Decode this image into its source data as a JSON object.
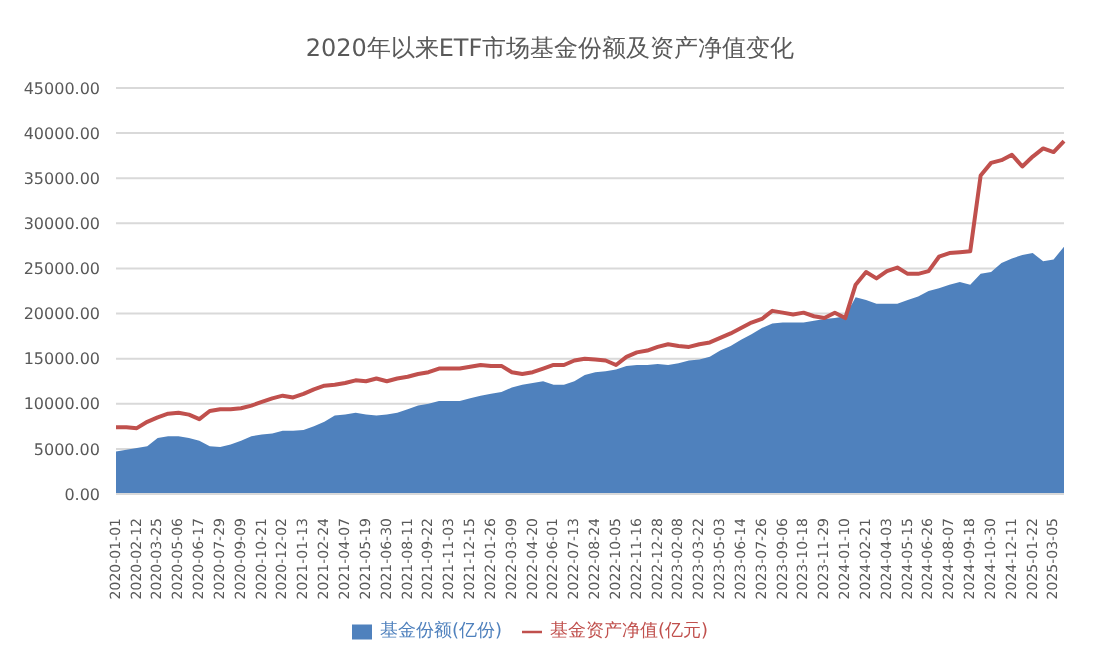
{
  "chart_data": {
    "type": "area",
    "title": "2020年以来ETF市场基金份额及资产净值变化",
    "categories": [
      "2020-01-01",
      null,
      "2020-02-12",
      null,
      "2020-03-25",
      null,
      "2020-05-06",
      null,
      "2020-06-17",
      null,
      "2020-07-29",
      null,
      "2020-09-09",
      null,
      "2020-10-21",
      null,
      "2020-12-02",
      null,
      "2021-01-13",
      null,
      "2021-02-24",
      null,
      "2021-04-07",
      null,
      "2021-05-19",
      null,
      "2021-06-30",
      null,
      "2021-08-11",
      null,
      "2021-09-22",
      null,
      "2021-11-03",
      null,
      "2021-12-15",
      null,
      "2022-01-26",
      null,
      "2022-03-09",
      null,
      "2022-04-20",
      null,
      "2022-06-01",
      null,
      "2022-07-13",
      null,
      "2022-08-24",
      null,
      "2022-10-05",
      null,
      "2022-11-16",
      null,
      "2022-12-28",
      null,
      "2023-02-08",
      null,
      "2023-03-22",
      null,
      "2023-05-03",
      null,
      "2023-06-14",
      null,
      "2023-07-26",
      null,
      "2023-09-06",
      null,
      "2023-10-18",
      null,
      "2023-11-29",
      null,
      "2024-01-10",
      null,
      "2024-02-21",
      null,
      "2024-04-03",
      null,
      "2024-05-15",
      null,
      "2024-06-26",
      null,
      "2024-08-07",
      null,
      "2024-09-18",
      null,
      "2024-10-30",
      null,
      "2024-12-11",
      null,
      "2025-01-22",
      null,
      "2025-03-05",
      null
    ],
    "series": [
      {
        "name": "基金份额(亿份)",
        "color": "#4f81bd",
        "values": [
          4700,
          4900,
          5100,
          5300,
          6200,
          6400,
          6400,
          6200,
          5900,
          5300,
          5200,
          5500,
          5900,
          6400,
          6600,
          6700,
          7000,
          7000,
          7100,
          7500,
          8000,
          8700,
          8800,
          9000,
          8800,
          8700,
          8800,
          9000,
          9400,
          9800,
          10000,
          10300,
          10300,
          10300,
          10600,
          10900,
          11100,
          11300,
          11800,
          12100,
          12300,
          12500,
          12100,
          12100,
          12500,
          13200,
          13500,
          13600,
          13800,
          14200,
          14300,
          14300,
          14400,
          14300,
          14500,
          14800,
          14900,
          15200,
          15900,
          16400,
          17100,
          17700,
          18400,
          18900,
          19000,
          19000,
          19000,
          19200,
          19400,
          19500,
          19700,
          21800,
          21500,
          21100,
          21100,
          21100,
          21500,
          21900,
          22500,
          22800,
          23200,
          23500,
          23200,
          24400,
          24600,
          25600,
          26100,
          26500,
          26700,
          25800,
          26000,
          27400
        ]
      },
      {
        "name": "基金资产净值(亿元)",
        "type": "line",
        "color": "#c0504d",
        "values": [
          7400,
          7400,
          7300,
          8000,
          8500,
          8900,
          9000,
          8800,
          8300,
          9200,
          9400,
          9400,
          9500,
          9800,
          10200,
          10600,
          10900,
          10700,
          11100,
          11600,
          12000,
          12100,
          12300,
          12600,
          12500,
          12800,
          12500,
          12800,
          13000,
          13300,
          13500,
          13900,
          13900,
          13900,
          14100,
          14300,
          14200,
          14200,
          13500,
          13300,
          13500,
          13900,
          14300,
          14300,
          14800,
          15000,
          14900,
          14800,
          14300,
          15200,
          15700,
          15900,
          16300,
          16600,
          16400,
          16300,
          16600,
          16800,
          17300,
          17800,
          18400,
          19000,
          19400,
          20300,
          20100,
          19900,
          20100,
          19700,
          19500,
          20100,
          19500,
          23200,
          24600,
          23900,
          24700,
          25100,
          24400,
          24400,
          24700,
          26300,
          26700,
          26800,
          26900,
          35300,
          36700,
          37000,
          37600,
          36300,
          37400,
          38300,
          37900,
          39100
        ]
      }
    ],
    "ylim": [
      0,
      45000
    ],
    "yticks": [
      {
        "value": 0,
        "label": "0.00"
      },
      {
        "value": 5000,
        "label": "5000.00"
      },
      {
        "value": 10000,
        "label": "10000.00"
      },
      {
        "value": 15000,
        "label": "15000.00"
      },
      {
        "value": 20000,
        "label": "20000.00"
      },
      {
        "value": 25000,
        "label": "25000.00"
      },
      {
        "value": 30000,
        "label": "30000.00"
      },
      {
        "value": 35000,
        "label": "35000.00"
      },
      {
        "value": 40000,
        "label": "40000.00"
      },
      {
        "value": 45000,
        "label": "45000.00"
      }
    ],
    "grid": "y",
    "legend": "bottom"
  }
}
